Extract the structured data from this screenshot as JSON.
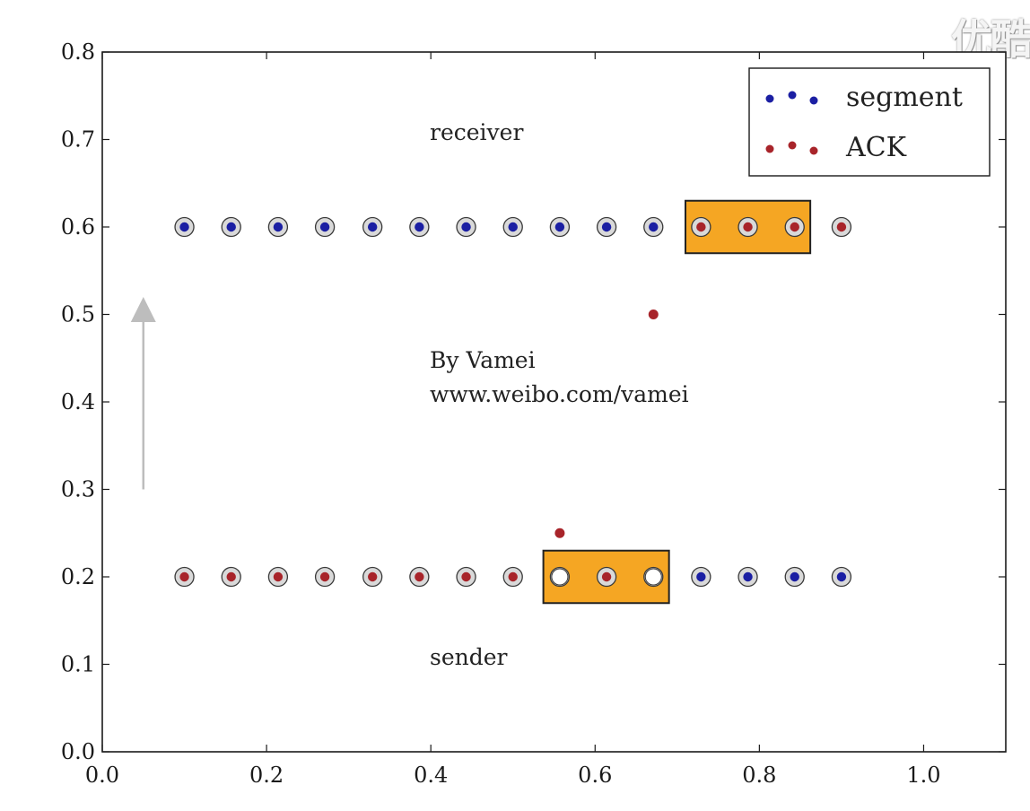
{
  "watermark": "优酷",
  "colors": {
    "segment": "#1b1fa3",
    "ack": "#a8242a",
    "window_fill": "#f5a623",
    "window_stroke": "#222222",
    "arrow": "#bdbdbd"
  },
  "chart_data": {
    "type": "scatter",
    "xlim": [
      0.0,
      1.1
    ],
    "ylim": [
      0.0,
      0.8
    ],
    "xticks": [
      "0.0",
      "0.2",
      "0.4",
      "0.6",
      "0.8",
      "1.0"
    ],
    "yticks": [
      "0.0",
      "0.1",
      "0.2",
      "0.3",
      "0.4",
      "0.5",
      "0.6",
      "0.7",
      "0.8"
    ],
    "grid": false,
    "legend": {
      "position": "top-right",
      "entries": [
        "segment",
        "ACK"
      ]
    },
    "annotations": {
      "receiver": "receiver",
      "sender": "sender",
      "author_line1": "By Vamei",
      "author_line2": "www.weibo.com/vamei"
    },
    "receiver_row": {
      "y": 0.6,
      "x": [
        0.1,
        0.157,
        0.214,
        0.271,
        0.329,
        0.386,
        0.443,
        0.5,
        0.557,
        0.614,
        0.671,
        0.729,
        0.786,
        0.843,
        0.9
      ],
      "kinds": [
        "segment",
        "segment",
        "segment",
        "segment",
        "segment",
        "segment",
        "segment",
        "segment",
        "segment",
        "segment",
        "segment",
        "ack",
        "ack",
        "ack",
        "ack"
      ],
      "window": {
        "x0": 0.71,
        "x1": 0.862,
        "y0": 0.57,
        "y1": 0.63
      }
    },
    "sender_row": {
      "y": 0.2,
      "x": [
        0.1,
        0.157,
        0.214,
        0.271,
        0.329,
        0.386,
        0.443,
        0.5,
        0.557,
        0.614,
        0.671,
        0.729,
        0.786,
        0.843,
        0.9
      ],
      "kinds": [
        "ack",
        "ack",
        "ack",
        "ack",
        "ack",
        "ack",
        "ack",
        "ack",
        "empty",
        "ack",
        "empty",
        "segment",
        "segment",
        "segment",
        "segment"
      ],
      "window": {
        "x0": 0.537,
        "x1": 0.69,
        "y0": 0.17,
        "y1": 0.23
      }
    },
    "in_flight": [
      {
        "kind": "ack",
        "x": 0.671,
        "y": 0.5
      },
      {
        "kind": "ack",
        "x": 0.557,
        "y": 0.25
      }
    ],
    "arrow": {
      "x": 0.05,
      "y_start": 0.3,
      "y_end": 0.52
    }
  }
}
